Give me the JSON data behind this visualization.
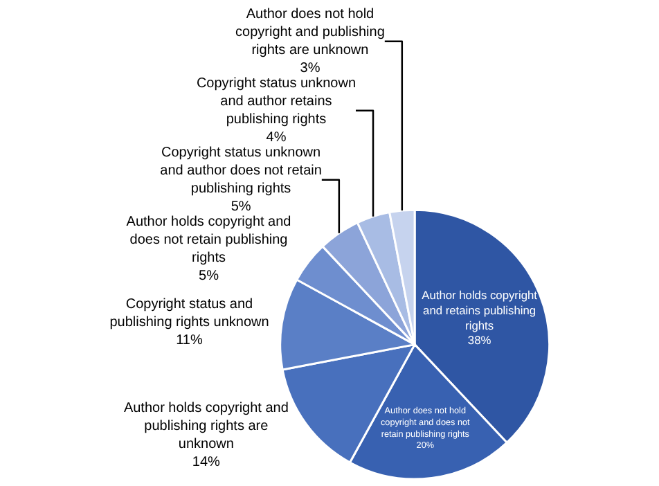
{
  "chart_data": {
    "type": "pie",
    "categories": [
      "Author holds copyright and retains publishing rights",
      "Author does not hold copyright and does not retain publishing rights",
      "Author holds copyright and publishing rights are unknown",
      "Copyright status and publishing rights unknown",
      "Author holds copyright and does not retain publishing rights",
      "Copyright status unknown and author does not retain publishing rights",
      "Copyright status unknown and author retains publishing rights",
      "Author does not hold copyright and publishing rights are unknown"
    ],
    "values": [
      38,
      20,
      14,
      11,
      5,
      5,
      4,
      3
    ],
    "value_labels": [
      "38%",
      "20%",
      "14%",
      "11%",
      "5%",
      "5%",
      "4%",
      "3%"
    ],
    "colors": [
      "#2f56a4",
      "#3861b1",
      "#4870bd",
      "#5a7fc6",
      "#6e8ecf",
      "#8ca4d9",
      "#a8bce4",
      "#c6d3ee"
    ]
  }
}
